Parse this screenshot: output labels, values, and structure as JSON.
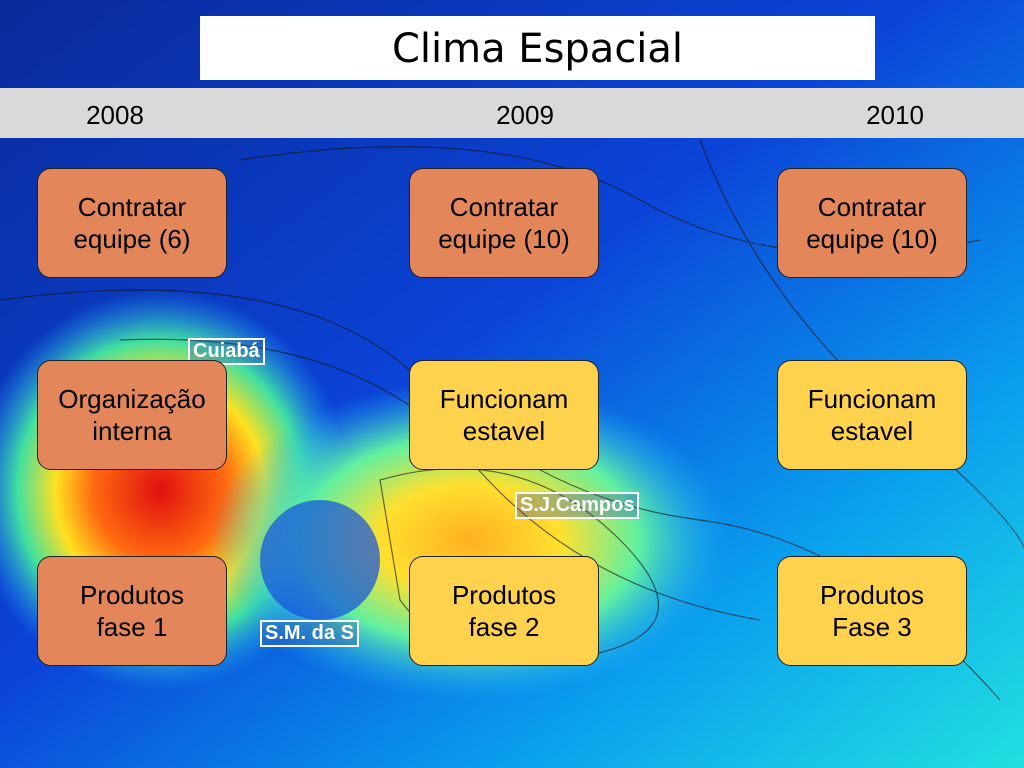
{
  "header": {
    "title": "Clima Espacial",
    "years": [
      "2008",
      "2009",
      "2010"
    ]
  },
  "map_labels": [
    "Cuiabá",
    "S.J.Campos",
    "S.M. da S"
  ],
  "grid": {
    "rows": [
      [
        {
          "lines": [
            "Contratar",
            "equipe (6)"
          ]
        },
        {
          "lines": [
            "Contratar",
            "equipe (10)"
          ]
        },
        {
          "lines": [
            "Contratar",
            "equipe (10)"
          ]
        }
      ],
      [
        {
          "lines": [
            "Organização",
            "interna"
          ]
        },
        {
          "lines": [
            "Funcionam",
            "estavel"
          ]
        },
        {
          "lines": [
            "Funcionam",
            "estavel"
          ]
        }
      ],
      [
        {
          "lines": [
            "Produtos",
            "fase 1"
          ]
        },
        {
          "lines": [
            "Produtos",
            "fase 2"
          ]
        },
        {
          "lines": [
            "Produtos",
            "Fase 3"
          ]
        }
      ]
    ]
  }
}
